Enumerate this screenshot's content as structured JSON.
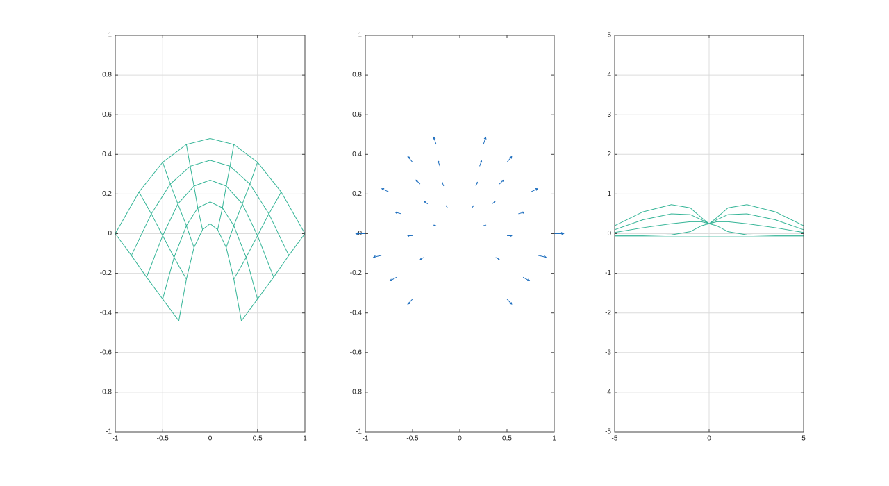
{
  "chart_data": [
    {
      "type": "mesh",
      "color": "#33b496",
      "grid": true,
      "xlim": [
        -1,
        1
      ],
      "ylim": [
        -1,
        1
      ],
      "xticks": [
        -1,
        -0.5,
        0,
        0.5,
        1
      ],
      "yticks": [
        -1,
        -0.8,
        -0.6,
        -0.4,
        -0.2,
        0,
        0.2,
        0.4,
        0.6,
        0.8,
        1
      ],
      "lines": [
        {
          "x": [
            -1,
            -0.75,
            -0.5,
            -0.25,
            0,
            0.25,
            0.5,
            0.75,
            1
          ],
          "y": [
            0,
            0.21,
            0.36,
            0.45,
            0.48,
            0.45,
            0.36,
            0.21,
            0
          ]
        },
        {
          "x": [
            -0.83,
            -0.62,
            -0.42,
            -0.21,
            0,
            0.21,
            0.42,
            0.62,
            0.83
          ],
          "y": [
            -0.11,
            0.1,
            0.25,
            0.34,
            0.37,
            0.34,
            0.25,
            0.1,
            -0.11
          ]
        },
        {
          "x": [
            -0.67,
            -0.5,
            -0.34,
            -0.17,
            0,
            0.17,
            0.34,
            0.5,
            0.67
          ],
          "y": [
            -0.22,
            -0.01,
            0.15,
            0.24,
            0.27,
            0.24,
            0.15,
            -0.01,
            -0.22
          ]
        },
        {
          "x": [
            -0.5,
            -0.38,
            -0.25,
            -0.13,
            0,
            0.13,
            0.25,
            0.38,
            0.5
          ],
          "y": [
            -0.33,
            -0.12,
            0.04,
            0.13,
            0.16,
            0.13,
            0.04,
            -0.12,
            -0.33
          ]
        },
        {
          "x": [
            -0.33,
            -0.25,
            -0.17,
            -0.08,
            0,
            0.08,
            0.17,
            0.25,
            0.33
          ],
          "y": [
            -0.44,
            -0.23,
            -0.07,
            0.02,
            0.05,
            0.02,
            -0.07,
            -0.23,
            -0.44
          ]
        }
      ]
    },
    {
      "type": "quiver",
      "color": "#1f6fbf",
      "grid": false,
      "xlim": [
        -1,
        1
      ],
      "ylim": [
        -1,
        1
      ],
      "xticks": [
        -1,
        -0.5,
        0,
        0.5,
        1
      ],
      "yticks": [
        -1,
        -0.8,
        -0.6,
        -0.4,
        -0.2,
        0,
        0.2,
        0.4,
        0.6,
        0.8,
        1
      ],
      "x": [
        -1,
        -0.75,
        -0.5,
        -0.25,
        0.25,
        0.5,
        0.75,
        1,
        -0.83,
        -0.62,
        -0.42,
        -0.21,
        0.21,
        0.42,
        0.62,
        0.83,
        -0.67,
        -0.5,
        -0.34,
        -0.17,
        0.17,
        0.34,
        0.5,
        0.67,
        -0.5,
        -0.38,
        -0.25,
        -0.13,
        0.13,
        0.25,
        0.38,
        0.5
      ],
      "y": [
        0,
        0.21,
        0.36,
        0.45,
        0.45,
        0.36,
        0.21,
        0,
        -0.11,
        0.1,
        0.25,
        0.34,
        0.34,
        0.25,
        0.1,
        -0.11,
        -0.22,
        -0.01,
        0.15,
        0.24,
        0.24,
        0.15,
        -0.01,
        -0.22,
        -0.33,
        -0.12,
        0.04,
        0.13,
        0.13,
        0.04,
        -0.12,
        -0.33
      ],
      "u": [
        -0.1,
        -0.075,
        -0.05,
        -0.025,
        0.025,
        0.05,
        0.075,
        0.1,
        -0.083,
        -0.062,
        -0.042,
        -0.021,
        0.021,
        0.042,
        0.062,
        0.083,
        -0.067,
        -0.05,
        -0.034,
        -0.017,
        0.017,
        0.034,
        0.05,
        0.067,
        -0.05,
        -0.038,
        -0.025,
        -0.013,
        0.013,
        0.025,
        0.038,
        0.05
      ],
      "v": [
        0,
        0.017,
        0.029,
        0.036,
        0.036,
        0.029,
        0.017,
        0,
        -0.009,
        0.008,
        0.02,
        0.027,
        0.027,
        0.02,
        0.008,
        -0.009,
        -0.018,
        -0.001,
        0.012,
        0.019,
        0.019,
        0.012,
        -0.001,
        -0.018,
        -0.026,
        -0.01,
        0.003,
        0.01,
        0.01,
        0.003,
        -0.01,
        -0.026
      ]
    },
    {
      "type": "line",
      "color": "#33b496",
      "grid": true,
      "xlim": [
        -5,
        5
      ],
      "ylim": [
        -5,
        5
      ],
      "xticks": [
        -5,
        0,
        5
      ],
      "yticks": [
        -5,
        -4,
        -3,
        -2,
        -1,
        0,
        1,
        2,
        3,
        4,
        5
      ],
      "x": [
        -5,
        -3.5,
        -2,
        -1,
        -0.4,
        0,
        0.4,
        1,
        2,
        3.5,
        5
      ],
      "series": [
        {
          "values": [
            0.2,
            0.55,
            0.73,
            0.65,
            0.4,
            0.25,
            0.4,
            0.65,
            0.73,
            0.55,
            0.2
          ]
        },
        {
          "values": [
            0.1,
            0.35,
            0.5,
            0.48,
            0.35,
            0.25,
            0.35,
            0.48,
            0.5,
            0.35,
            0.1
          ]
        },
        {
          "values": [
            0.03,
            0.15,
            0.25,
            0.3,
            0.3,
            0.25,
            0.3,
            0.3,
            0.25,
            0.15,
            0.03
          ]
        },
        {
          "values": [
            -0.05,
            -0.05,
            -0.03,
            0.05,
            0.2,
            0.25,
            0.2,
            0.05,
            -0.03,
            -0.05,
            -0.05
          ]
        },
        {
          "values": [
            -0.08,
            -0.08,
            -0.08,
            -0.08,
            -0.08,
            -0.08,
            -0.08,
            -0.08,
            -0.08,
            -0.08,
            -0.08
          ]
        }
      ]
    }
  ]
}
